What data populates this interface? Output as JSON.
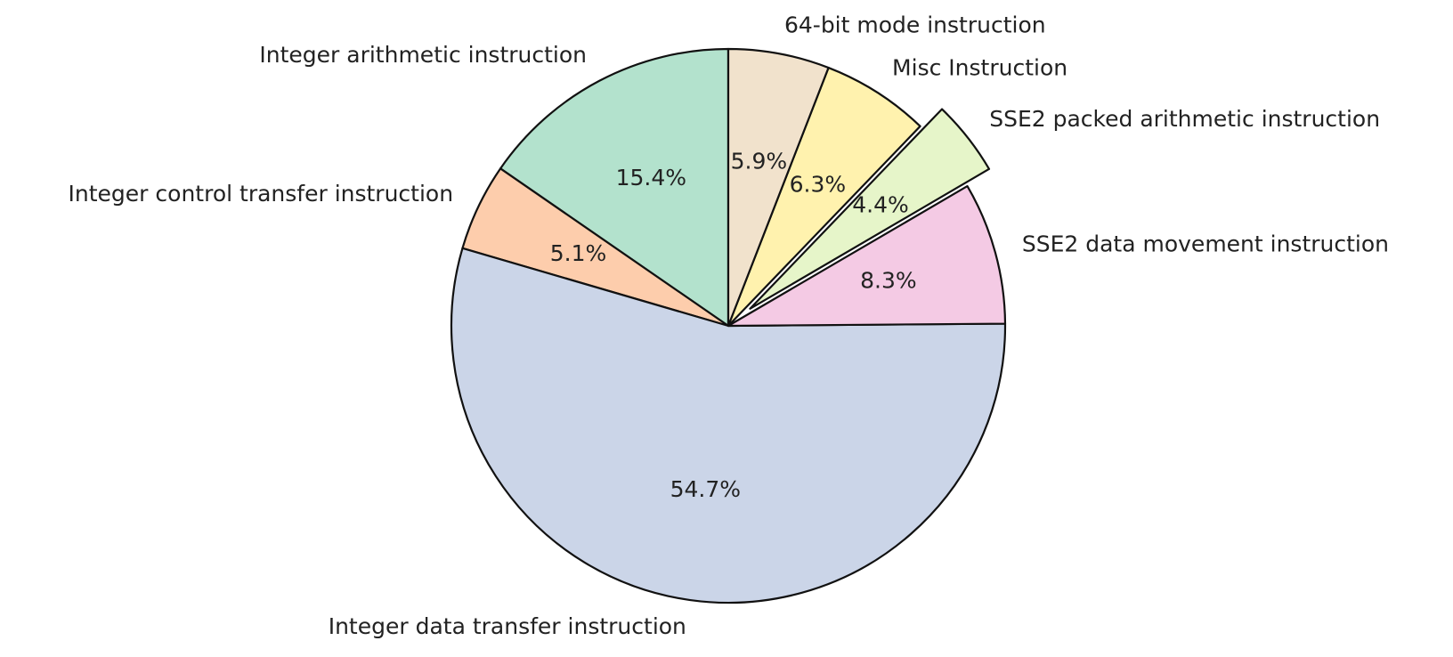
{
  "chart_data": {
    "type": "pie",
    "categories": [
      "Integer arithmetic instruction",
      "Integer control transfer instruction",
      "Integer data transfer instruction",
      "SSE2 data movement instruction",
      "SSE2 packed arithmetic instruction",
      "Misc Instruction",
      "64-bit mode instruction"
    ],
    "values": [
      15.4,
      5.1,
      54.7,
      8.3,
      4.4,
      6.3,
      5.9
    ],
    "value_labels": [
      "15.4%",
      "5.1%",
      "54.7%",
      "8.3%",
      "4.4%",
      "6.3%",
      "5.9%"
    ],
    "colors": [
      "#b3e2cd",
      "#fdcdac",
      "#cbd5e8",
      "#f4cae4",
      "#e6f5c9",
      "#fff2ae",
      "#f1e2cc"
    ],
    "explode": [
      0,
      0,
      0,
      0,
      0.1,
      0,
      0
    ],
    "start_angle": 90
  }
}
